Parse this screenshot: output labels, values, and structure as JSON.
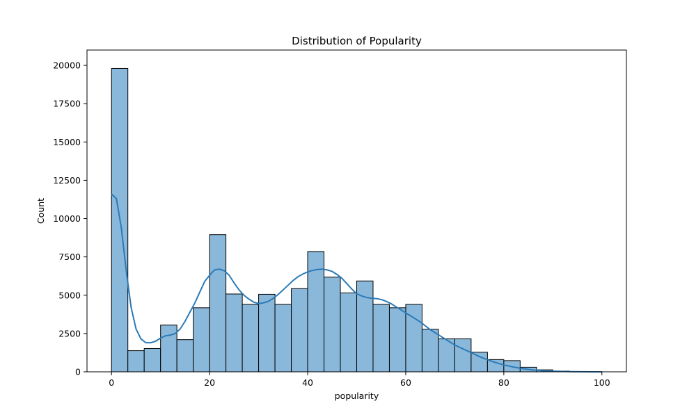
{
  "chart_data": {
    "type": "bar",
    "title": "Distribution of Popularity",
    "xlabel": "popularity",
    "ylabel": "Count",
    "xlim": [
      -5,
      105
    ],
    "ylim": [
      0,
      21000
    ],
    "x_ticks": [
      0,
      20,
      40,
      60,
      80,
      100
    ],
    "y_ticks": [
      0,
      2500,
      5000,
      7500,
      10000,
      12500,
      15000,
      17500,
      20000
    ],
    "bin_width": 3.333,
    "bins": [
      {
        "start": 0.0,
        "end": 3.333,
        "count": 19800
      },
      {
        "start": 3.333,
        "end": 6.667,
        "count": 1380
      },
      {
        "start": 6.667,
        "end": 10.0,
        "count": 1520
      },
      {
        "start": 10.0,
        "end": 13.333,
        "count": 3050
      },
      {
        "start": 13.333,
        "end": 16.667,
        "count": 2100
      },
      {
        "start": 16.667,
        "end": 20.0,
        "count": 4180
      },
      {
        "start": 20.0,
        "end": 23.333,
        "count": 8950
      },
      {
        "start": 23.333,
        "end": 26.667,
        "count": 5080
      },
      {
        "start": 26.667,
        "end": 30.0,
        "count": 4400
      },
      {
        "start": 30.0,
        "end": 33.333,
        "count": 5060
      },
      {
        "start": 33.333,
        "end": 36.667,
        "count": 4400
      },
      {
        "start": 36.667,
        "end": 40.0,
        "count": 5430
      },
      {
        "start": 40.0,
        "end": 43.333,
        "count": 7850
      },
      {
        "start": 43.333,
        "end": 46.667,
        "count": 6180
      },
      {
        "start": 46.667,
        "end": 50.0,
        "count": 5150
      },
      {
        "start": 50.0,
        "end": 53.333,
        "count": 5930
      },
      {
        "start": 53.333,
        "end": 56.667,
        "count": 4400
      },
      {
        "start": 56.667,
        "end": 60.0,
        "count": 4180
      },
      {
        "start": 60.0,
        "end": 63.333,
        "count": 4400
      },
      {
        "start": 63.333,
        "end": 66.667,
        "count": 2780
      },
      {
        "start": 66.667,
        "end": 70.0,
        "count": 2150
      },
      {
        "start": 70.0,
        "end": 73.333,
        "count": 2150
      },
      {
        "start": 73.333,
        "end": 76.667,
        "count": 1280
      },
      {
        "start": 76.667,
        "end": 80.0,
        "count": 800
      },
      {
        "start": 80.0,
        "end": 83.333,
        "count": 730
      },
      {
        "start": 83.333,
        "end": 86.667,
        "count": 300
      },
      {
        "start": 86.667,
        "end": 90.0,
        "count": 130
      },
      {
        "start": 90.0,
        "end": 93.333,
        "count": 50
      },
      {
        "start": 93.333,
        "end": 96.667,
        "count": 20
      },
      {
        "start": 96.667,
        "end": 100.0,
        "count": 10
      }
    ],
    "kde": {
      "x": [
        0,
        1,
        2,
        3,
        4,
        5,
        6,
        7,
        8,
        9,
        10,
        11,
        12,
        13,
        14,
        15,
        16,
        17,
        18,
        19,
        20,
        21,
        22,
        23,
        24,
        25,
        26,
        27,
        28,
        29,
        30,
        31,
        32,
        33,
        34,
        35,
        36,
        37,
        38,
        39,
        40,
        41,
        42,
        43,
        44,
        45,
        46,
        47,
        48,
        49,
        50,
        51,
        52,
        53,
        54,
        55,
        56,
        57,
        58,
        59,
        60,
        61,
        62,
        63,
        64,
        65,
        66,
        67,
        68,
        69,
        70,
        71,
        72,
        73,
        74,
        75,
        76,
        77,
        78,
        79,
        80,
        82,
        84,
        86,
        88,
        90,
        92,
        94,
        96,
        98,
        100
      ],
      "y": [
        11600,
        11300,
        9400,
        6600,
        4200,
        2800,
        2150,
        1900,
        1900,
        2000,
        2200,
        2350,
        2400,
        2500,
        2800,
        3300,
        3900,
        4500,
        5200,
        5900,
        6300,
        6650,
        6700,
        6600,
        6300,
        5800,
        5350,
        5000,
        4750,
        4550,
        4450,
        4500,
        4600,
        4800,
        5050,
        5350,
        5650,
        5950,
        6200,
        6380,
        6520,
        6620,
        6680,
        6700,
        6650,
        6550,
        6350,
        6100,
        5750,
        5400,
        5100,
        4950,
        4850,
        4800,
        4780,
        4720,
        4600,
        4450,
        4250,
        4050,
        3850,
        3650,
        3450,
        3250,
        3000,
        2750,
        2550,
        2350,
        2150,
        1950,
        1750,
        1600,
        1450,
        1300,
        1150,
        1000,
        870,
        750,
        640,
        540,
        450,
        310,
        200,
        120,
        70,
        40,
        20,
        10,
        5,
        2,
        1
      ]
    },
    "bar_color": "#8ab8da",
    "bar_edge_color": "#000000",
    "kde_color": "#2b7ab7",
    "legend": false,
    "grid": false
  }
}
